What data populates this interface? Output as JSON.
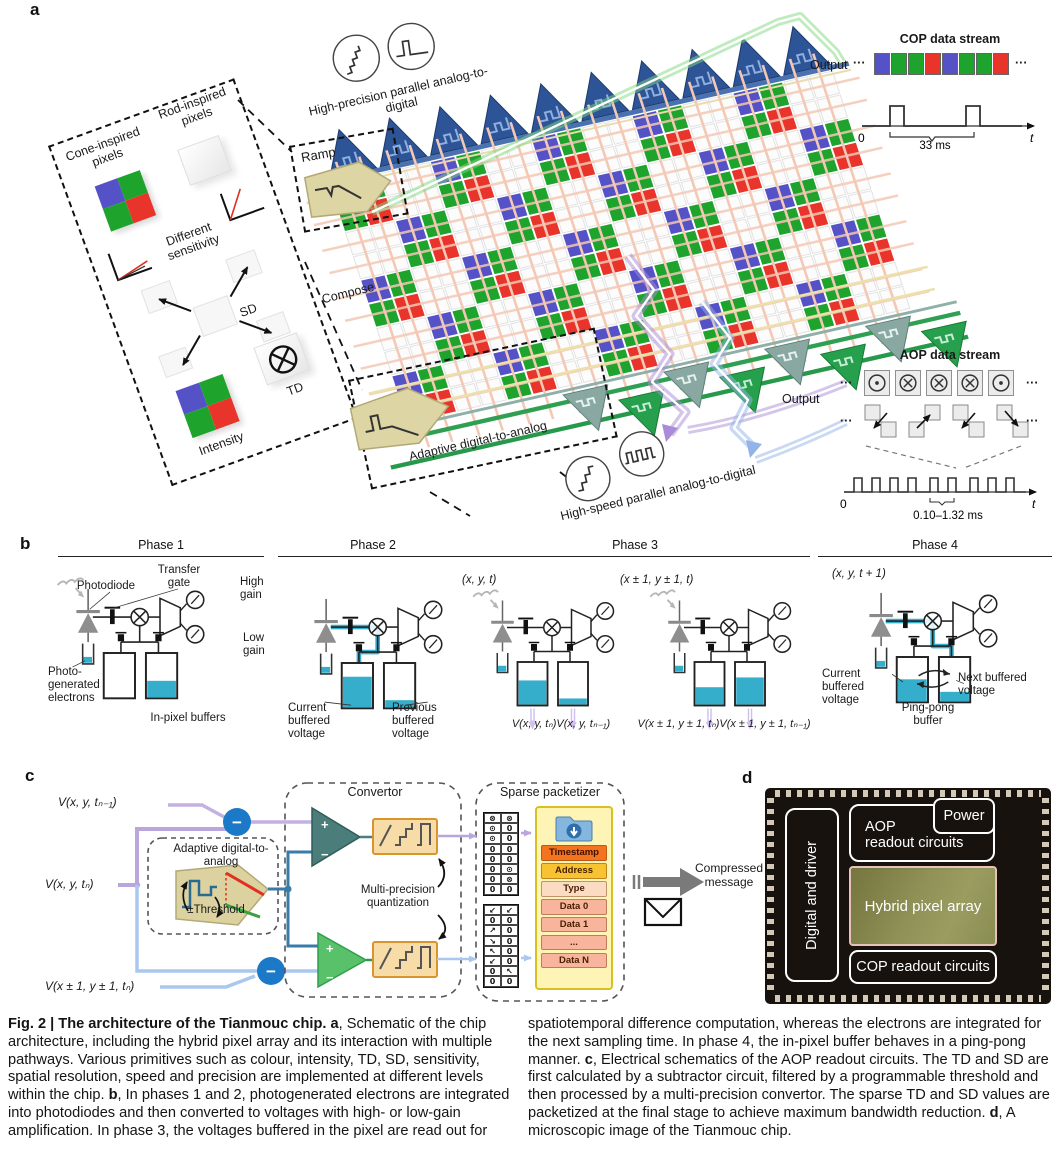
{
  "panels": {
    "a": "a",
    "b": "b",
    "c": "c",
    "d": "d"
  },
  "panel_a": {
    "legend": {
      "cone_label": "Cone-inspired pixels",
      "rod_label": "Rod-inspired pixels",
      "sensitivity_label": "Different sensitivity",
      "sd_label": "SD",
      "intensity_label": "Intensity",
      "td_label": "TD"
    },
    "ramp_label": "Ramp",
    "compose_label": "Compose",
    "adc_top_label": "High-precision parallel analog-to-digital",
    "dac_label": "Adaptive digital-to-analog",
    "adc_bottom_label": "High-speed parallel analog-to-digital",
    "cop": {
      "title": "COP data stream",
      "output_label": "Output",
      "dots": "···",
      "cells": [
        "blue",
        "green",
        "green",
        "red",
        "blue",
        "green",
        "green",
        "red"
      ],
      "t0": "0",
      "t1": "t",
      "duration": "33 ms"
    },
    "aop": {
      "title": "AOP data stream",
      "output_label": "Output",
      "dots": "···",
      "cells": [
        "dot",
        "cross",
        "cross",
        "cross",
        "dot"
      ],
      "pair_dirs": [
        "sw",
        "ne",
        "sw",
        "se"
      ],
      "t0": "0",
      "t1": "t",
      "duration": "0.10–1.32 ms"
    }
  },
  "panel_b": {
    "phases": [
      {
        "title": "Phase 1"
      },
      {
        "title": "Phase 2"
      },
      {
        "title": "Phase 3"
      },
      {
        "title": "Phase 4"
      }
    ],
    "p1": {
      "photodiode": "Photodiode",
      "transfer_gate": "Transfer gate",
      "high_gain": "High gain",
      "low_gain": "Low gain",
      "photo_electrons": "Photo-generated electrons",
      "buffers": "In-pixel buffers"
    },
    "p2": {
      "current": "Current buffered voltage",
      "previous": "Previous buffered voltage"
    },
    "p3": {
      "coord1": "(x, y, t)",
      "coord2": "(x ± 1, y ± 1, t)",
      "out1": "V(x, y, tₙ)V(x, y, tₙ₋₁)",
      "out2": "V(x ± 1, y ± 1, tₙ)V(x ± 1, y ± 1, tₙ₋₁)"
    },
    "p4": {
      "coord": "(x, y, t + 1)",
      "current": "Current buffered voltage",
      "pingpong": "Ping-pong buffer",
      "next": "Next buffered voltage"
    }
  },
  "panel_c": {
    "inputs": [
      "V(x, y, tₙ₋₁)",
      "V(x, y, tₙ)",
      "V(x ± 1, y ± 1, tₙ)"
    ],
    "dac_title": "Adaptive digital-to-analog",
    "threshold": "±Threshold",
    "convertor_title": "Convertor",
    "quant_label": "Multi-precision quantization",
    "packetizer_title": "Sparse packetizer",
    "plus": "+",
    "minus": "−",
    "packet_fields": [
      "Timestamp",
      "Address",
      "Type",
      "Data 0",
      "Data 1",
      "...",
      "Data N"
    ],
    "td_grid": [
      [
        "⊗",
        "⊗"
      ],
      [
        "⊙",
        "0"
      ],
      [
        "⊙",
        "0"
      ],
      [
        "0",
        "0"
      ],
      [
        "0",
        "0"
      ],
      [
        "0",
        "⊙"
      ],
      [
        "0",
        "⊗"
      ],
      [
        "0",
        "0"
      ]
    ],
    "sd_grid": [
      [
        "↙",
        "↙"
      ],
      [
        "0",
        "0"
      ],
      [
        "↗",
        "0"
      ],
      [
        "↘",
        "0"
      ],
      [
        "↖",
        "0"
      ],
      [
        "↙",
        "0"
      ],
      [
        "0",
        "↖"
      ],
      [
        "0",
        "0"
      ]
    ],
    "compressed_label": "Compressed message"
  },
  "panel_d": {
    "digital": "Digital and driver",
    "aop_1": "AOP",
    "aop_2": "readout circuits",
    "power": "Power",
    "pixel_array": "Hybrid pixel array",
    "cop": "COP readout circuits"
  },
  "caption": {
    "left": [
      {
        "t": "Fig. 2 | The architecture of the Tianmouc chip. ",
        "b": true
      },
      {
        "t": "a",
        "b": true
      },
      {
        "t": ", Schematic of the chip architecture, including the hybrid pixel array and its interaction with multiple pathways. Various primitives such as colour, intensity, TD, SD, sensitivity, spatial resolution, speed and precision are implemented at different levels within the chip. "
      },
      {
        "t": "b",
        "b": true
      },
      {
        "t": ", In phases 1 and 2, photogenerated electrons are integrated into photodiodes and then converted to voltages with high- or low-gain amplification. In phase 3, the voltages buffered in the pixel are read out for"
      }
    ],
    "right": [
      {
        "t": "spatiotemporal difference computation, whereas the electrons are integrated for the next sampling time. In phase 4, the in-pixel buffer behaves in a ping-pong manner. "
      },
      {
        "t": "c",
        "b": true
      },
      {
        "t": ", Electrical schematics of the AOP readout circuits. The TD and SD are first calculated by a subtractor circuit, filtered by a programmable threshold and then processed by a multi-precision convertor. The sparse TD and SD values are packetized at the final stage to achieve maximum bandwidth reduction. "
      },
      {
        "t": "d",
        "b": true
      },
      {
        "t": ", A microscopic image of the Tianmouc chip."
      }
    ]
  },
  "colors": {
    "pixel_blue": "#5551c7",
    "pixel_green": "#1ea42c",
    "pixel_red": "#e8342a",
    "teal": "#35aecb",
    "accent_blue": "#1b79c8"
  }
}
